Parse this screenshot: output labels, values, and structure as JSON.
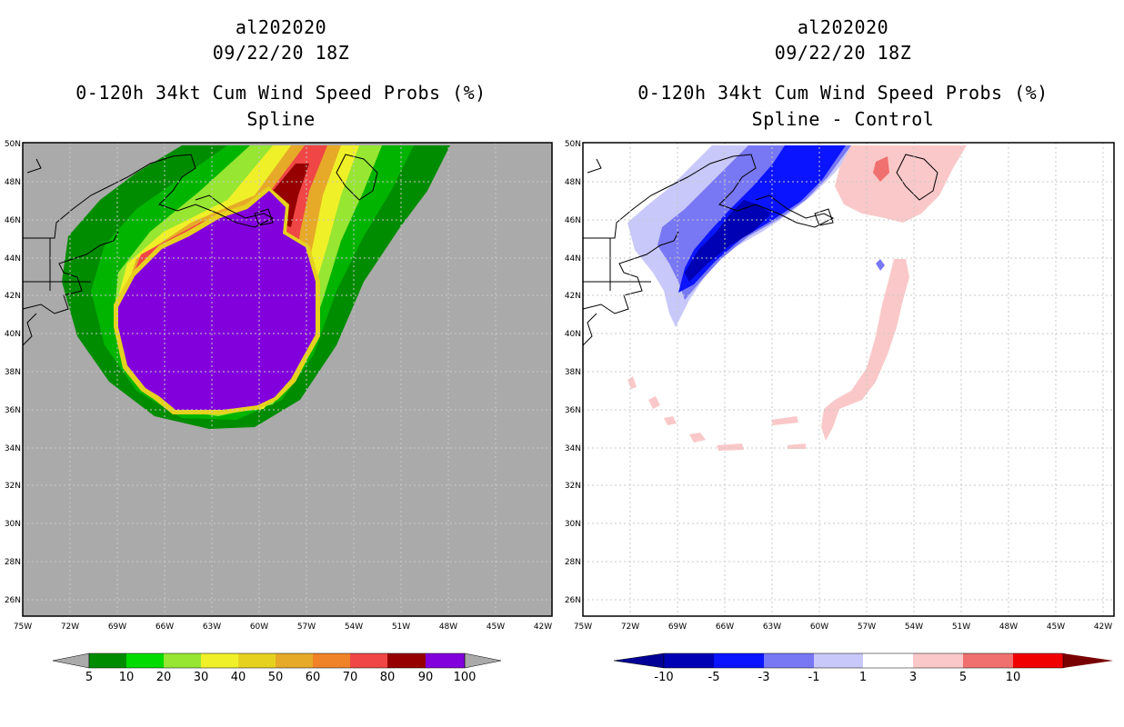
{
  "left": {
    "storm_id": "al202020",
    "datetime": "09/22/20 18Z",
    "product": "0-120h 34kt Cum Wind Speed Probs (%)",
    "subtitle": "Spline",
    "colorbar": {
      "labels": [
        "5",
        "10",
        "20",
        "30",
        "40",
        "50",
        "60",
        "70",
        "80",
        "90",
        "100"
      ],
      "colors": [
        "#008c00",
        "#00b400",
        "#00dc00",
        "#96e632",
        "#f0f028",
        "#e6d21e",
        "#e6aa28",
        "#f08228",
        "#f04646",
        "#960000",
        "#8200dc"
      ],
      "extend_color": "#aaaaaa"
    }
  },
  "right": {
    "storm_id": "al202020",
    "datetime": "09/22/20 18Z",
    "product": "0-120h 34kt Cum Wind Speed Probs (%)",
    "subtitle": "Spline - Control",
    "colorbar": {
      "labels": [
        "-10",
        "-5",
        "-3",
        "-1",
        "1",
        "3",
        "5",
        "10"
      ],
      "colors": [
        "#0000b4",
        "#0a14ff",
        "#7878f5",
        "#c8c8fa",
        "#ffffff",
        "#fac8c8",
        "#f07070",
        "#f00000"
      ],
      "extend_low": "#000096",
      "extend_high": "#780000"
    }
  },
  "axes": {
    "lon_labels": [
      "75W",
      "72W",
      "69W",
      "66W",
      "63W",
      "60W",
      "57W",
      "54W",
      "51W",
      "48W",
      "45W",
      "42W"
    ],
    "lat_labels": [
      "26N",
      "28N",
      "30N",
      "32N",
      "34N",
      "36N",
      "38N",
      "40N",
      "42N",
      "44N",
      "46N",
      "48N",
      "50N"
    ]
  },
  "colors": {
    "ocean_fill": "#aaaaaa",
    "grid": "#c8c8c8"
  }
}
